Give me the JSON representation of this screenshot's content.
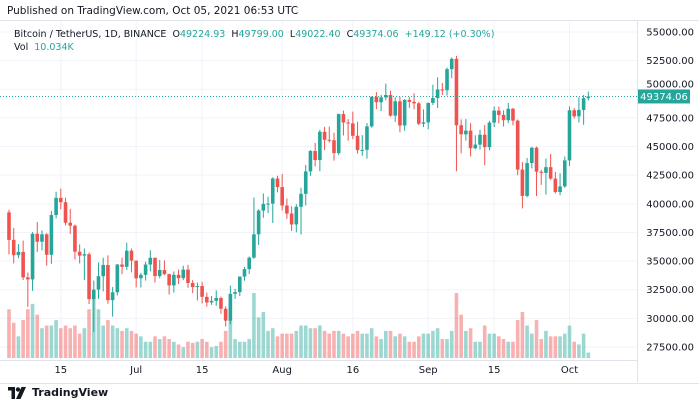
{
  "published": "Published on TradingView.com, Oct 05, 2021 06:53 UTC",
  "legend": {
    "symbol": "Bitcoin / TetherUS, 1D, BINANCE",
    "o_label": "O",
    "o": "49224.93",
    "h_label": "H",
    "h": "49799.00",
    "l_label": "L",
    "l": "49022.40",
    "c_label": "C",
    "c": "49374.06",
    "change": "+149.12 (+0.30%)",
    "vol_label": "Vol",
    "vol": "10.034K"
  },
  "footer": {
    "brand": "TradingView"
  },
  "colors": {
    "up": "#26a69a",
    "down": "#ef5350",
    "grid": "#f0f3fa"
  },
  "chart_data": {
    "type": "candlestick",
    "symbol": "BTCUSDT",
    "interval": "1D",
    "ylim": [
      26500,
      56000
    ],
    "y_ticks": [
      "55000.00",
      "52500.00",
      "50000.00",
      "47500.00",
      "45000.00",
      "42500.00",
      "40000.00",
      "37500.00",
      "35000.00",
      "32500.00",
      "30000.00",
      "27500.00"
    ],
    "x_ticks": [
      {
        "label": "15",
        "date": "2021-06-15"
      },
      {
        "label": "Jul",
        "date": "2021-07-01"
      },
      {
        "label": "15",
        "date": "2021-07-15"
      },
      {
        "label": "Aug",
        "date": "2021-08-01"
      },
      {
        "label": "16",
        "date": "2021-08-16"
      },
      {
        "label": "Sep",
        "date": "2021-09-01"
      },
      {
        "label": "15",
        "date": "2021-09-15"
      },
      {
        "label": "Oct",
        "date": "2021-10-01"
      }
    ],
    "last_price": "49374.06",
    "grid": true,
    "columns": [
      "date",
      "open",
      "high",
      "low",
      "close",
      "volume_k"
    ],
    "candles": [
      [
        "2021-06-04",
        39250,
        39480,
        35600,
        36850,
        90
      ],
      [
        "2021-06-05",
        36850,
        37900,
        34800,
        35520,
        65
      ],
      [
        "2021-06-06",
        35520,
        36480,
        35260,
        35800,
        40
      ],
      [
        "2021-06-07",
        35800,
        36790,
        33340,
        33580,
        70
      ],
      [
        "2021-06-08",
        33580,
        34000,
        31000,
        33400,
        90
      ],
      [
        "2021-06-09",
        33400,
        37530,
        32400,
        37390,
        100
      ],
      [
        "2021-06-10",
        37390,
        38400,
        35800,
        36690,
        80
      ],
      [
        "2021-06-11",
        36690,
        37680,
        35940,
        37340,
        55
      ],
      [
        "2021-06-12",
        37340,
        37440,
        34600,
        35550,
        60
      ],
      [
        "2021-06-13",
        35550,
        39380,
        34760,
        39020,
        60
      ],
      [
        "2021-06-14",
        39020,
        41060,
        38730,
        40520,
        70
      ],
      [
        "2021-06-15",
        40520,
        41330,
        39510,
        40140,
        55
      ],
      [
        "2021-06-16",
        40140,
        40530,
        38120,
        38350,
        60
      ],
      [
        "2021-06-17",
        38350,
        39560,
        37370,
        38090,
        55
      ],
      [
        "2021-06-18",
        38090,
        38200,
        35130,
        35820,
        60
      ],
      [
        "2021-06-19",
        35820,
        36460,
        34800,
        35480,
        45
      ],
      [
        "2021-06-20",
        35480,
        36100,
        33340,
        35600,
        55
      ],
      [
        "2021-06-21",
        35600,
        35750,
        31250,
        31680,
        90
      ],
      [
        "2021-06-22",
        31680,
        33300,
        28800,
        32510,
        110
      ],
      [
        "2021-06-23",
        32510,
        34880,
        31700,
        33680,
        90
      ],
      [
        "2021-06-24",
        33680,
        35290,
        32350,
        34660,
        60
      ],
      [
        "2021-06-25",
        34660,
        35500,
        31280,
        31590,
        70
      ],
      [
        "2021-06-26",
        31590,
        32730,
        30150,
        32280,
        60
      ],
      [
        "2021-06-27",
        32280,
        34750,
        32000,
        34700,
        55
      ],
      [
        "2021-06-28",
        34700,
        35300,
        33860,
        34500,
        50
      ],
      [
        "2021-06-29",
        34500,
        36600,
        34230,
        35910,
        55
      ],
      [
        "2021-06-30",
        35910,
        36100,
        34020,
        35040,
        50
      ],
      [
        "2021-07-01",
        35040,
        35060,
        32700,
        33500,
        45
      ],
      [
        "2021-07-02",
        33500,
        33980,
        32700,
        33800,
        40
      ],
      [
        "2021-07-03",
        33800,
        34950,
        33300,
        34700,
        30
      ],
      [
        "2021-07-04",
        34700,
        35950,
        34100,
        35290,
        30
      ],
      [
        "2021-07-05",
        35290,
        35290,
        33120,
        33690,
        40
      ],
      [
        "2021-07-06",
        33690,
        35100,
        33500,
        34220,
        35
      ],
      [
        "2021-07-07",
        34220,
        35060,
        33770,
        33860,
        40
      ],
      [
        "2021-07-08",
        33860,
        33900,
        32080,
        32880,
        35
      ],
      [
        "2021-07-09",
        32880,
        34100,
        32250,
        33800,
        30
      ],
      [
        "2021-07-10",
        33800,
        34260,
        33000,
        33510,
        25
      ],
      [
        "2021-07-11",
        33510,
        34590,
        33330,
        34260,
        20
      ],
      [
        "2021-07-12",
        34260,
        34670,
        32670,
        33090,
        30
      ],
      [
        "2021-07-13",
        33090,
        33340,
        32200,
        32730,
        28
      ],
      [
        "2021-07-14",
        32730,
        33130,
        31570,
        32820,
        30
      ],
      [
        "2021-07-15",
        32820,
        33190,
        31300,
        31880,
        35
      ],
      [
        "2021-07-16",
        31880,
        32250,
        31020,
        31390,
        30
      ],
      [
        "2021-07-17",
        31390,
        31950,
        31180,
        31530,
        20
      ],
      [
        "2021-07-18",
        31530,
        32440,
        31100,
        31780,
        22
      ],
      [
        "2021-07-19",
        31780,
        31900,
        30400,
        30840,
        30
      ],
      [
        "2021-07-20",
        30840,
        31040,
        29280,
        29800,
        50
      ],
      [
        "2021-07-21",
        29800,
        32860,
        29480,
        32140,
        70
      ],
      [
        "2021-07-22",
        32140,
        32580,
        31700,
        32290,
        35
      ],
      [
        "2021-07-23",
        32290,
        33650,
        31950,
        33650,
        30
      ],
      [
        "2021-07-24",
        33650,
        34500,
        33300,
        34300,
        30
      ],
      [
        "2021-07-25",
        34300,
        35400,
        33870,
        35300,
        35
      ],
      [
        "2021-07-26",
        35300,
        40550,
        35200,
        37340,
        120
      ],
      [
        "2021-07-27",
        37340,
        39540,
        36400,
        39410,
        75
      ],
      [
        "2021-07-28",
        39410,
        40900,
        38780,
        39990,
        85
      ],
      [
        "2021-07-29",
        39990,
        40620,
        39200,
        40020,
        50
      ],
      [
        "2021-07-30",
        40020,
        42320,
        38320,
        42210,
        55
      ],
      [
        "2021-07-31",
        42210,
        42450,
        41000,
        41460,
        40
      ],
      [
        "2021-08-01",
        41460,
        42600,
        39420,
        39850,
        45
      ],
      [
        "2021-08-02",
        39850,
        40460,
        38690,
        39150,
        45
      ],
      [
        "2021-08-03",
        39150,
        39780,
        37640,
        38200,
        45
      ],
      [
        "2021-08-04",
        38200,
        39970,
        37510,
        39740,
        50
      ],
      [
        "2021-08-05",
        39740,
        41400,
        37330,
        40870,
        60
      ],
      [
        "2021-08-06",
        40870,
        43390,
        39850,
        42830,
        60
      ],
      [
        "2021-08-07",
        42830,
        44700,
        42450,
        44610,
        55
      ],
      [
        "2021-08-08",
        44610,
        45310,
        43260,
        43820,
        55
      ],
      [
        "2021-08-09",
        43820,
        46450,
        42840,
        46290,
        60
      ],
      [
        "2021-08-10",
        46290,
        46720,
        44700,
        45590,
        50
      ],
      [
        "2021-08-11",
        45590,
        46740,
        45350,
        45550,
        45
      ],
      [
        "2021-08-12",
        45550,
        46220,
        43770,
        44430,
        50
      ],
      [
        "2021-08-13",
        44430,
        47880,
        44250,
        47830,
        50
      ],
      [
        "2021-08-14",
        47830,
        48140,
        45970,
        47100,
        45
      ],
      [
        "2021-08-15",
        47100,
        47390,
        45520,
        47020,
        40
      ],
      [
        "2021-08-16",
        47020,
        48050,
        45650,
        45940,
        45
      ],
      [
        "2021-08-17",
        45940,
        47160,
        44380,
        44690,
        50
      ],
      [
        "2021-08-18",
        44690,
        46000,
        44200,
        44710,
        45
      ],
      [
        "2021-08-19",
        44710,
        47050,
        43950,
        46760,
        45
      ],
      [
        "2021-08-20",
        46760,
        49380,
        46640,
        49340,
        55
      ],
      [
        "2021-08-21",
        49340,
        49760,
        48280,
        48870,
        40
      ],
      [
        "2021-08-22",
        48870,
        49520,
        48100,
        49290,
        35
      ],
      [
        "2021-08-23",
        49290,
        50500,
        49030,
        49500,
        50
      ],
      [
        "2021-08-24",
        49500,
        49880,
        47600,
        47700,
        50
      ],
      [
        "2021-08-25",
        47700,
        49290,
        47150,
        48950,
        40
      ],
      [
        "2021-08-26",
        48950,
        49350,
        46250,
        46840,
        45
      ],
      [
        "2021-08-27",
        46840,
        49150,
        46370,
        49070,
        40
      ],
      [
        "2021-08-28",
        49070,
        49310,
        48370,
        48900,
        30
      ],
      [
        "2021-08-29",
        48900,
        49650,
        48250,
        48770,
        30
      ],
      [
        "2021-08-30",
        48770,
        48900,
        46860,
        46990,
        40
      ],
      [
        "2021-08-31",
        46990,
        48250,
        46700,
        47110,
        45
      ],
      [
        "2021-09-01",
        47110,
        48830,
        46510,
        48810,
        45
      ],
      [
        "2021-09-02",
        48810,
        50400,
        48620,
        49240,
        50
      ],
      [
        "2021-09-03",
        49240,
        51050,
        48350,
        49980,
        55
      ],
      [
        "2021-09-04",
        49980,
        50550,
        49500,
        49920,
        35
      ],
      [
        "2021-09-05",
        49920,
        51900,
        49450,
        51760,
        35
      ],
      [
        "2021-09-06",
        51760,
        52780,
        50960,
        52660,
        50
      ],
      [
        "2021-09-07",
        52660,
        52920,
        42840,
        46860,
        120
      ],
      [
        "2021-09-08",
        46860,
        47380,
        44410,
        46070,
        80
      ],
      [
        "2021-09-09",
        46070,
        47400,
        45520,
        46390,
        50
      ],
      [
        "2021-09-10",
        46390,
        47040,
        44140,
        44850,
        55
      ],
      [
        "2021-09-11",
        44850,
        45990,
        44750,
        45170,
        30
      ],
      [
        "2021-09-12",
        45170,
        46460,
        44740,
        46030,
        30
      ],
      [
        "2021-09-13",
        46030,
        46880,
        43370,
        44950,
        60
      ],
      [
        "2021-09-14",
        44950,
        47250,
        44680,
        47090,
        45
      ],
      [
        "2021-09-15",
        47090,
        48490,
        46700,
        48140,
        45
      ],
      [
        "2021-09-16",
        48140,
        48500,
        47020,
        47760,
        40
      ],
      [
        "2021-09-17",
        47760,
        48170,
        46750,
        47300,
        35
      ],
      [
        "2021-09-18",
        47300,
        48820,
        47050,
        48300,
        30
      ],
      [
        "2021-09-19",
        48300,
        48370,
        46850,
        47260,
        30
      ],
      [
        "2021-09-20",
        47260,
        47360,
        42500,
        42990,
        70
      ],
      [
        "2021-09-21",
        42990,
        43640,
        39600,
        40690,
        85
      ],
      [
        "2021-09-22",
        40690,
        44000,
        40560,
        43560,
        60
      ],
      [
        "2021-09-23",
        43560,
        44980,
        43090,
        44900,
        45
      ],
      [
        "2021-09-24",
        44900,
        45000,
        40680,
        42800,
        70
      ],
      [
        "2021-09-25",
        42800,
        42970,
        41650,
        42700,
        35
      ],
      [
        "2021-09-26",
        42700,
        43950,
        40800,
        43200,
        50
      ],
      [
        "2021-09-27",
        43200,
        44350,
        42100,
        42200,
        40
      ],
      [
        "2021-09-28",
        42200,
        42790,
        40900,
        41030,
        40
      ],
      [
        "2021-09-29",
        41030,
        42670,
        40750,
        41520,
        40
      ],
      [
        "2021-09-30",
        41520,
        44130,
        41400,
        43790,
        45
      ],
      [
        "2021-10-01",
        43790,
        48500,
        43300,
        48170,
        60
      ],
      [
        "2021-10-02",
        48170,
        48360,
        47440,
        47640,
        30
      ],
      [
        "2021-10-03",
        47640,
        49300,
        47100,
        48200,
        25
      ],
      [
        "2021-10-04",
        48200,
        49500,
        46900,
        49220,
        45
      ],
      [
        "2021-10-05",
        49224.93,
        49799.0,
        49022.4,
        49374.06,
        10.034
      ]
    ]
  }
}
